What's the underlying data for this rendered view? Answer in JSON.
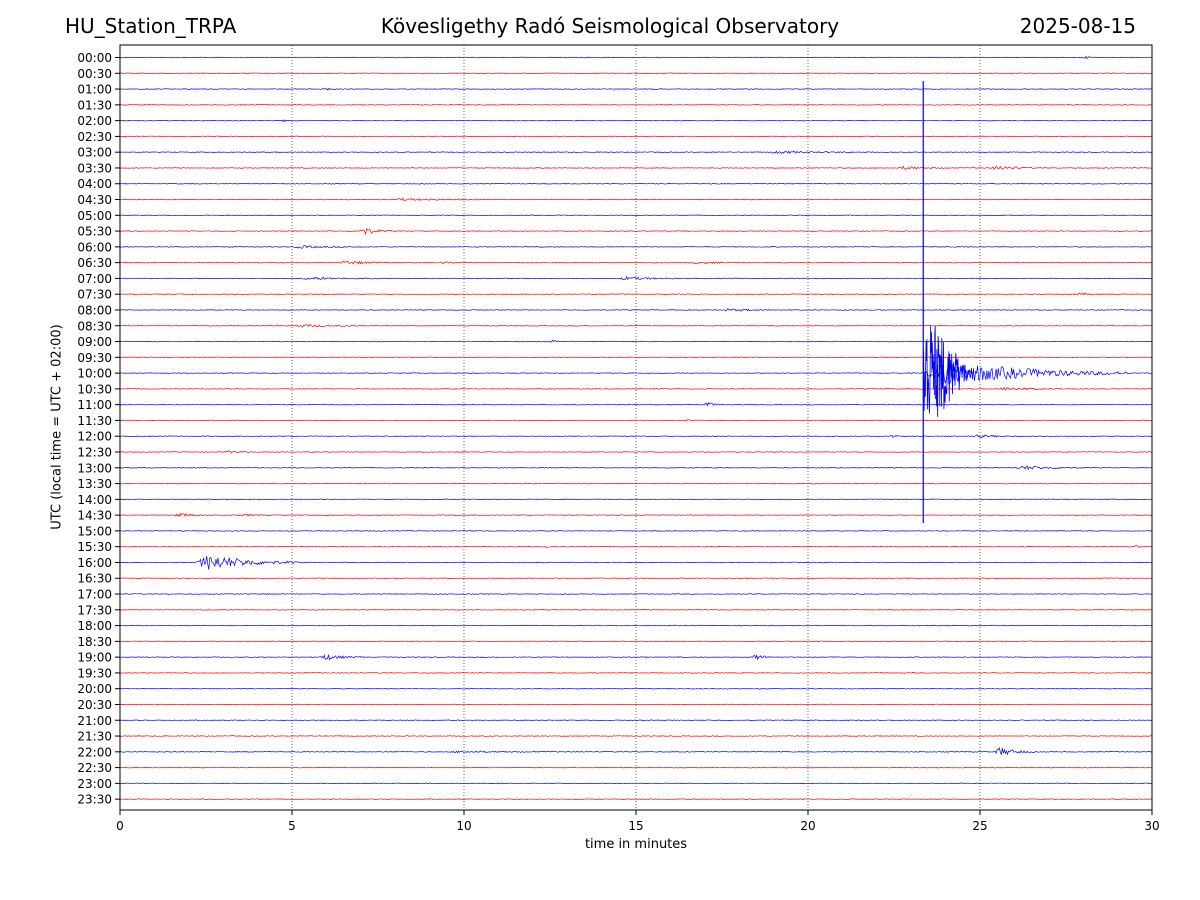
{
  "chart_data": {
    "type": "line",
    "subtype": "helicorder",
    "station_title": "HU_Station_TRPA",
    "title": "Kövesligethy Radó Seismological Observatory",
    "date": "2025-08-15",
    "xlabel": "time in minutes",
    "ylabel": "UTC (local time = UTC + 02:00)",
    "xlim": [
      0,
      30
    ],
    "xticks": [
      "0",
      "5",
      "10",
      "15",
      "20",
      "25",
      "30"
    ],
    "grid": "vertical dotted at each 5 minutes",
    "trace_colors": [
      "#0000ff",
      "#ff0000"
    ],
    "row_labels": [
      "00:00",
      "00:30",
      "01:00",
      "01:30",
      "02:00",
      "02:30",
      "03:00",
      "03:30",
      "04:00",
      "04:30",
      "05:00",
      "05:30",
      "06:00",
      "06:30",
      "07:00",
      "07:30",
      "08:00",
      "08:30",
      "09:00",
      "09:30",
      "10:00",
      "10:30",
      "11:00",
      "11:30",
      "12:00",
      "12:30",
      "13:00",
      "13:30",
      "14:00",
      "14:30",
      "15:00",
      "15:30",
      "16:00",
      "16:30",
      "17:00",
      "17:30",
      "18:00",
      "18:30",
      "19:00",
      "19:30",
      "20:00",
      "20:30",
      "21:00",
      "21:30",
      "22:00",
      "22:30",
      "23:00",
      "23:30"
    ],
    "events": [
      {
        "row": 0,
        "minute": 28.0,
        "duration": 0.5,
        "amplitude": 0.15
      },
      {
        "row": 2,
        "minute": 5.9,
        "duration": 0.4,
        "amplitude": 0.25
      },
      {
        "row": 4,
        "minute": 4.7,
        "duration": 0.5,
        "amplitude": 0.12
      },
      {
        "row": 6,
        "minute": 18.8,
        "duration": 3.0,
        "amplitude": 0.15
      },
      {
        "row": 7,
        "minute": 22.6,
        "duration": 1.5,
        "amplitude": 0.2
      },
      {
        "row": 7,
        "minute": 25.3,
        "duration": 1.5,
        "amplitude": 0.25
      },
      {
        "row": 9,
        "minute": 7.8,
        "duration": 3.0,
        "amplitude": 0.12
      },
      {
        "row": 11,
        "minute": 6.9,
        "duration": 1.0,
        "amplitude": 0.55
      },
      {
        "row": 12,
        "minute": 5.0,
        "duration": 2.0,
        "amplitude": 0.15
      },
      {
        "row": 13,
        "minute": 6.3,
        "duration": 2.0,
        "amplitude": 0.2
      },
      {
        "row": 13,
        "minute": 9.3,
        "duration": 0.5,
        "amplitude": 0.2
      },
      {
        "row": 13,
        "minute": 16.5,
        "duration": 2.0,
        "amplitude": 0.12
      },
      {
        "row": 14,
        "minute": 5.2,
        "duration": 2.5,
        "amplitude": 0.15
      },
      {
        "row": 14,
        "minute": 14.5,
        "duration": 1.8,
        "amplitude": 0.2
      },
      {
        "row": 15,
        "minute": 27.8,
        "duration": 0.8,
        "amplitude": 0.15
      },
      {
        "row": 16,
        "minute": 17.5,
        "duration": 1.5,
        "amplitude": 0.15
      },
      {
        "row": 17,
        "minute": 5.0,
        "duration": 2.5,
        "amplitude": 0.15
      },
      {
        "row": 18,
        "minute": 12.5,
        "duration": 0.3,
        "amplitude": 0.2
      },
      {
        "row": 20,
        "minute": 23.3,
        "duration": 6.0,
        "amplitude": 1.6
      },
      {
        "row": 21,
        "minute": 25.5,
        "duration": 2.0,
        "amplitude": 0.2
      },
      {
        "row": 22,
        "minute": 17.0,
        "duration": 0.5,
        "amplitude": 0.35
      },
      {
        "row": 23,
        "minute": 16.4,
        "duration": 0.3,
        "amplitude": 0.15
      },
      {
        "row": 24,
        "minute": 22.4,
        "duration": 0.3,
        "amplitude": 0.3
      },
      {
        "row": 24,
        "minute": 24.8,
        "duration": 1.5,
        "amplitude": 0.15
      },
      {
        "row": 25,
        "minute": 3.0,
        "duration": 0.8,
        "amplitude": 0.15
      },
      {
        "row": 26,
        "minute": 26.0,
        "duration": 2.2,
        "amplitude": 0.25
      },
      {
        "row": 29,
        "minute": 1.6,
        "duration": 0.8,
        "amplitude": 0.35
      },
      {
        "row": 29,
        "minute": 3.5,
        "duration": 0.8,
        "amplitude": 0.12
      },
      {
        "row": 31,
        "minute": 12.3,
        "duration": 0.8,
        "amplitude": 0.1
      },
      {
        "row": 31,
        "minute": 29.5,
        "duration": 0.2,
        "amplitude": 0.25
      },
      {
        "row": 32,
        "minute": 2.2,
        "duration": 3.0,
        "amplitude": 1.0
      },
      {
        "row": 38,
        "minute": 5.8,
        "duration": 1.2,
        "amplitude": 0.35
      },
      {
        "row": 38,
        "minute": 18.4,
        "duration": 0.5,
        "amplitude": 0.55
      },
      {
        "row": 44,
        "minute": 25.4,
        "duration": 1.2,
        "amplitude": 0.55
      },
      {
        "row": 44,
        "minute": 9.5,
        "duration": 3.5,
        "amplitude": 0.1
      }
    ],
    "large_event": {
      "row": 20,
      "minute": 23.35,
      "spike_up_rows": 18.5,
      "spike_down_rows": 9.5
    }
  }
}
